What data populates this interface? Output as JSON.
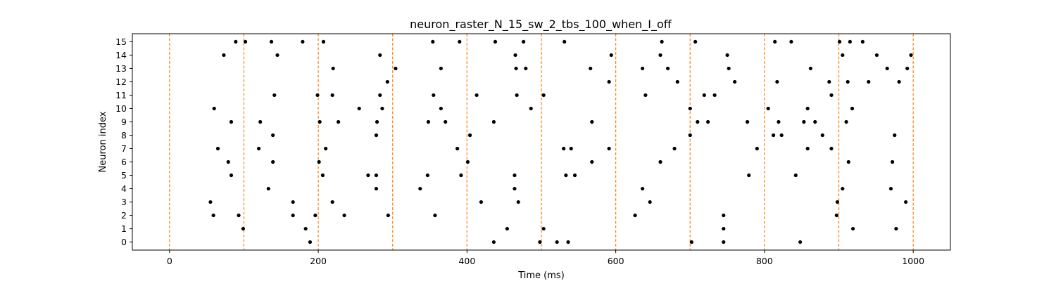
{
  "chart_data": {
    "type": "scatter",
    "title": "neuron_raster_N_15_sw_2_tbs_100_when_I_off",
    "xlabel": "Time (ms)",
    "ylabel": "Neuron index",
    "xlim": [
      -50,
      1050
    ],
    "ylim": [
      -0.6,
      15.6
    ],
    "x_ticks": [
      0,
      200,
      400,
      600,
      800,
      1000
    ],
    "x_tick_labels": [
      "0",
      "200",
      "400",
      "600",
      "800",
      "1000"
    ],
    "y_ticks": [
      0,
      1,
      2,
      3,
      4,
      5,
      6,
      7,
      8,
      9,
      10,
      11,
      12,
      13,
      14,
      15
    ],
    "y_tick_labels": [
      "0",
      "1",
      "2",
      "3",
      "4",
      "5",
      "6",
      "7",
      "8",
      "9",
      "10",
      "11",
      "12",
      "13",
      "14",
      "15"
    ],
    "grid": false,
    "vlines": [
      0,
      100,
      200,
      300,
      400,
      500,
      600,
      700,
      800,
      900,
      1000
    ],
    "colors": {
      "spike": "#000000",
      "vline": "#ff7f0e",
      "axis": "#000000"
    },
    "series": [
      {
        "points": [
          [
            189,
            0
          ],
          [
            436,
            0
          ],
          [
            498,
            0
          ],
          [
            521,
            0
          ],
          [
            536,
            0
          ],
          [
            702,
            0
          ],
          [
            745,
            0
          ],
          [
            848,
            0
          ],
          [
            99,
            1
          ],
          [
            183,
            1
          ],
          [
            454,
            1
          ],
          [
            503,
            1
          ],
          [
            745,
            1
          ],
          [
            919,
            1
          ],
          [
            977,
            1
          ],
          [
            59,
            2
          ],
          [
            93,
            2
          ],
          [
            166,
            2
          ],
          [
            196,
            2
          ],
          [
            235,
            2
          ],
          [
            294,
            2
          ],
          [
            357,
            2
          ],
          [
            626,
            2
          ],
          [
            745,
            2
          ],
          [
            897,
            2
          ],
          [
            55,
            3
          ],
          [
            166,
            3
          ],
          [
            219,
            3
          ],
          [
            419,
            3
          ],
          [
            469,
            3
          ],
          [
            646,
            3
          ],
          [
            898,
            3
          ],
          [
            990,
            3
          ],
          [
            133,
            4
          ],
          [
            278,
            4
          ],
          [
            337,
            4
          ],
          [
            464,
            4
          ],
          [
            636,
            4
          ],
          [
            905,
            4
          ],
          [
            970,
            4
          ],
          [
            83,
            5
          ],
          [
            206,
            5
          ],
          [
            267,
            5
          ],
          [
            278,
            5
          ],
          [
            347,
            5
          ],
          [
            392,
            5
          ],
          [
            464,
            5
          ],
          [
            533,
            5
          ],
          [
            545,
            5
          ],
          [
            779,
            5
          ],
          [
            842,
            5
          ],
          [
            79,
            6
          ],
          [
            139,
            6
          ],
          [
            201,
            6
          ],
          [
            401,
            6
          ],
          [
            568,
            6
          ],
          [
            660,
            6
          ],
          [
            913,
            6
          ],
          [
            972,
            6
          ],
          [
            65,
            7
          ],
          [
            120,
            7
          ],
          [
            210,
            7
          ],
          [
            387,
            7
          ],
          [
            530,
            7
          ],
          [
            540,
            7
          ],
          [
            591,
            7
          ],
          [
            679,
            7
          ],
          [
            790,
            7
          ],
          [
            858,
            7
          ],
          [
            890,
            7
          ],
          [
            139,
            8
          ],
          [
            278,
            8
          ],
          [
            404,
            8
          ],
          [
            700,
            8
          ],
          [
            812,
            8
          ],
          [
            823,
            8
          ],
          [
            878,
            8
          ],
          [
            975,
            8
          ],
          [
            83,
            9
          ],
          [
            122,
            9
          ],
          [
            202,
            9
          ],
          [
            227,
            9
          ],
          [
            279,
            9
          ],
          [
            348,
            9
          ],
          [
            371,
            9
          ],
          [
            436,
            9
          ],
          [
            568,
            9
          ],
          [
            710,
            9
          ],
          [
            724,
            9
          ],
          [
            777,
            9
          ],
          [
            819,
            9
          ],
          [
            853,
            9
          ],
          [
            868,
            9
          ],
          [
            910,
            9
          ],
          [
            60,
            10
          ],
          [
            255,
            10
          ],
          [
            286,
            10
          ],
          [
            365,
            10
          ],
          [
            486,
            10
          ],
          [
            700,
            10
          ],
          [
            805,
            10
          ],
          [
            858,
            10
          ],
          [
            918,
            10
          ],
          [
            141,
            11
          ],
          [
            199,
            11
          ],
          [
            219,
            11
          ],
          [
            283,
            11
          ],
          [
            355,
            11
          ],
          [
            413,
            11
          ],
          [
            467,
            11
          ],
          [
            503,
            11
          ],
          [
            640,
            11
          ],
          [
            719,
            11
          ],
          [
            733,
            11
          ],
          [
            890,
            11
          ],
          [
            293,
            12
          ],
          [
            591,
            12
          ],
          [
            683,
            12
          ],
          [
            760,
            12
          ],
          [
            817,
            12
          ],
          [
            887,
            12
          ],
          [
            912,
            12
          ],
          [
            940,
            12
          ],
          [
            981,
            12
          ],
          [
            220,
            13
          ],
          [
            304,
            13
          ],
          [
            365,
            13
          ],
          [
            466,
            13
          ],
          [
            479,
            13
          ],
          [
            566,
            13
          ],
          [
            636,
            13
          ],
          [
            670,
            13
          ],
          [
            752,
            13
          ],
          [
            862,
            13
          ],
          [
            965,
            13
          ],
          [
            992,
            13
          ],
          [
            73,
            14
          ],
          [
            145,
            14
          ],
          [
            283,
            14
          ],
          [
            465,
            14
          ],
          [
            594,
            14
          ],
          [
            660,
            14
          ],
          [
            750,
            14
          ],
          [
            905,
            14
          ],
          [
            951,
            14
          ],
          [
            997,
            14
          ],
          [
            89,
            15
          ],
          [
            102,
            15
          ],
          [
            137,
            15
          ],
          [
            179,
            15
          ],
          [
            207,
            15
          ],
          [
            354,
            15
          ],
          [
            390,
            15
          ],
          [
            438,
            15
          ],
          [
            476,
            15
          ],
          [
            531,
            15
          ],
          [
            662,
            15
          ],
          [
            707,
            15
          ],
          [
            814,
            15
          ],
          [
            836,
            15
          ],
          [
            901,
            15
          ],
          [
            915,
            15
          ],
          [
            932,
            15
          ]
        ]
      }
    ]
  }
}
